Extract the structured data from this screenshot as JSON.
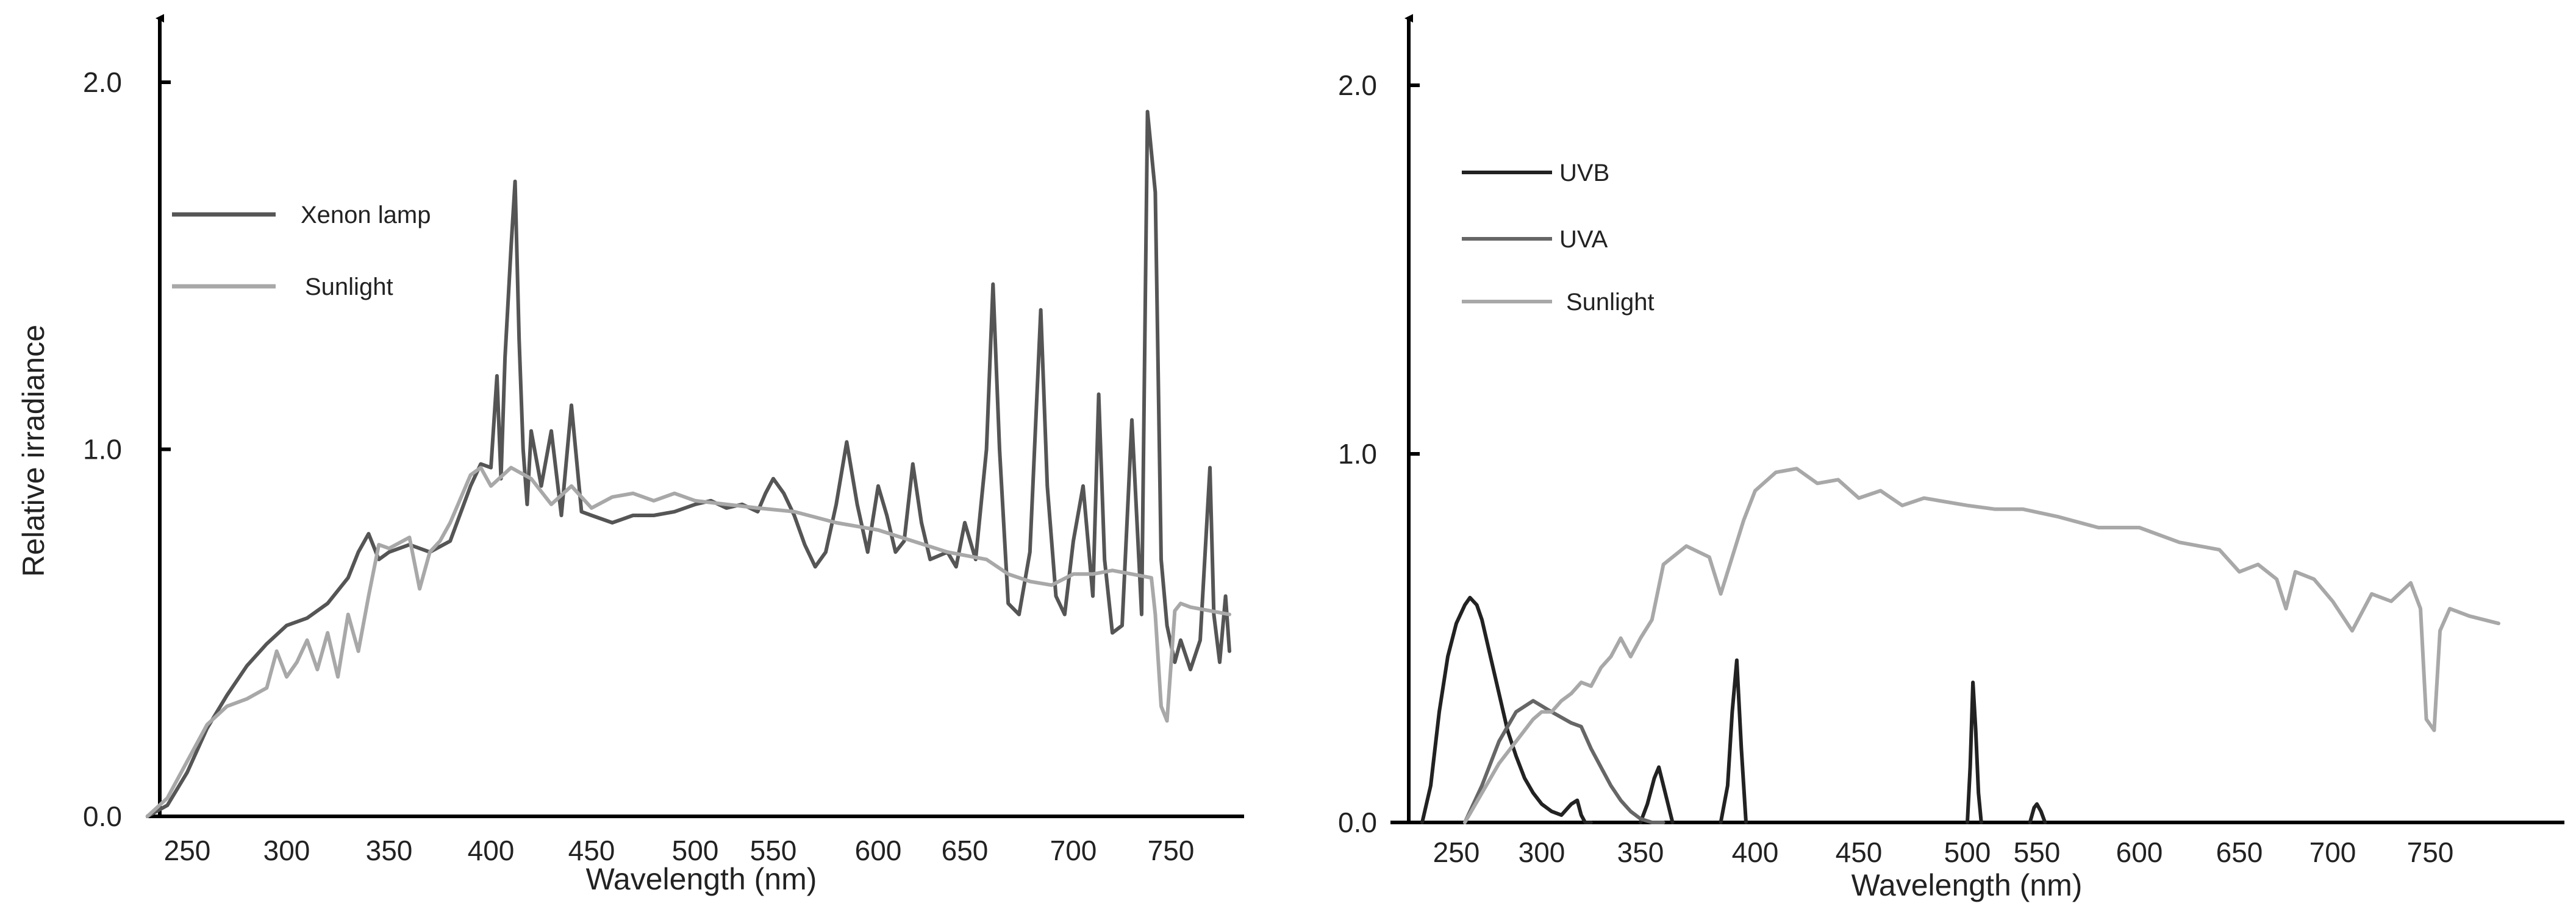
{
  "chart_data": [
    {
      "type": "line",
      "title": "",
      "xlabel": "Wavelength (nm)",
      "ylabel": "Relative irradiance",
      "x_ticks": [
        "250",
        "300",
        "350",
        "400",
        "450",
        "500",
        "550",
        "600",
        "650",
        "700",
        "750"
      ],
      "y_ticks": [
        "0.0",
        "1.0",
        "2.0"
      ],
      "xlim": [
        230,
        780
      ],
      "ylim": [
        0,
        2.0
      ],
      "legend_position": "top-left",
      "series": [
        {
          "name": "Xenon lamp",
          "color": "#555555",
          "x": [
            230,
            240,
            250,
            260,
            270,
            280,
            290,
            300,
            310,
            320,
            330,
            335,
            340,
            345,
            350,
            360,
            370,
            380,
            390,
            395,
            400,
            403,
            405,
            407,
            410,
            412,
            414,
            416,
            418,
            420,
            425,
            430,
            435,
            440,
            445,
            450,
            460,
            470,
            480,
            490,
            500,
            510,
            520,
            530,
            540,
            545,
            550,
            555,
            560,
            565,
            570,
            575,
            580,
            585,
            590,
            595,
            600,
            605,
            610,
            615,
            620,
            625,
            630,
            640,
            645,
            650,
            655,
            660,
            663,
            666,
            670,
            675,
            680,
            685,
            688,
            692,
            696,
            700,
            705,
            710,
            713,
            716,
            720,
            725,
            730,
            735,
            738,
            742,
            745,
            748,
            752,
            755,
            760,
            765,
            770,
            772,
            775,
            778,
            780
          ],
          "y": [
            0.0,
            0.03,
            0.12,
            0.24,
            0.33,
            0.41,
            0.47,
            0.52,
            0.54,
            0.58,
            0.65,
            0.72,
            0.77,
            0.7,
            0.72,
            0.74,
            0.72,
            0.75,
            0.9,
            0.96,
            0.95,
            1.2,
            0.92,
            1.25,
            1.55,
            1.73,
            1.3,
            1.0,
            0.85,
            1.05,
            0.9,
            1.05,
            0.82,
            1.12,
            0.83,
            0.82,
            0.8,
            0.82,
            0.82,
            0.83,
            0.85,
            0.86,
            0.84,
            0.85,
            0.83,
            0.88,
            0.92,
            0.88,
            0.82,
            0.74,
            0.68,
            0.72,
            0.85,
            1.02,
            0.85,
            0.72,
            0.9,
            0.82,
            0.72,
            0.75,
            0.96,
            0.8,
            0.7,
            0.72,
            0.68,
            0.8,
            0.7,
            1.0,
            1.45,
            1.0,
            0.58,
            0.55,
            0.72,
            1.38,
            0.9,
            0.6,
            0.55,
            0.75,
            0.9,
            0.6,
            1.15,
            0.7,
            0.5,
            0.52,
            1.08,
            0.55,
            1.92,
            1.7,
            0.7,
            0.52,
            0.42,
            0.48,
            0.4,
            0.48,
            0.95,
            0.55,
            0.42,
            0.6,
            0.45
          ]
        },
        {
          "name": "Sunlight",
          "color": "#a8a8a8",
          "x": [
            230,
            240,
            250,
            260,
            270,
            280,
            290,
            295,
            300,
            305,
            310,
            315,
            320,
            325,
            330,
            335,
            340,
            345,
            350,
            360,
            365,
            370,
            375,
            380,
            390,
            395,
            400,
            410,
            420,
            430,
            440,
            450,
            460,
            470,
            480,
            490,
            500,
            520,
            540,
            560,
            580,
            600,
            620,
            640,
            660,
            670,
            680,
            690,
            700,
            710,
            720,
            730,
            740,
            742,
            745,
            748,
            752,
            755,
            760,
            770,
            780
          ],
          "y": [
            0.0,
            0.05,
            0.15,
            0.25,
            0.3,
            0.32,
            0.35,
            0.45,
            0.38,
            0.42,
            0.48,
            0.4,
            0.5,
            0.38,
            0.55,
            0.45,
            0.6,
            0.74,
            0.73,
            0.76,
            0.62,
            0.72,
            0.75,
            0.8,
            0.93,
            0.95,
            0.9,
            0.95,
            0.92,
            0.85,
            0.9,
            0.84,
            0.87,
            0.88,
            0.86,
            0.88,
            0.86,
            0.85,
            0.84,
            0.83,
            0.8,
            0.78,
            0.75,
            0.72,
            0.7,
            0.66,
            0.64,
            0.63,
            0.66,
            0.66,
            0.67,
            0.66,
            0.65,
            0.55,
            0.3,
            0.26,
            0.56,
            0.58,
            0.57,
            0.56,
            0.55
          ]
        }
      ]
    },
    {
      "type": "line",
      "title": "",
      "xlabel": "Wavelength (nm)",
      "ylabel": "",
      "x_ticks": [
        "250",
        "300",
        "350",
        "400",
        "450",
        "500",
        "550",
        "600",
        "650",
        "700",
        "750"
      ],
      "y_ticks": [
        "0.0",
        "1.0",
        "2.0"
      ],
      "xlim": [
        228,
        785
      ],
      "ylim": [
        0,
        2.0
      ],
      "legend_position": "top-left",
      "series": [
        {
          "name": "UVB",
          "color": "#222222",
          "x": [
            230,
            235,
            240,
            245,
            250,
            255,
            258,
            260,
            262,
            265,
            270,
            275,
            280,
            285,
            290,
            295,
            300,
            305,
            310,
            315,
            318,
            320,
            322,
            325
          ],
          "y": [
            0.0,
            0.1,
            0.3,
            0.45,
            0.54,
            0.59,
            0.61,
            0.6,
            0.59,
            0.55,
            0.45,
            0.35,
            0.25,
            0.18,
            0.12,
            0.08,
            0.05,
            0.03,
            0.02,
            0.05,
            0.06,
            0.02,
            0.0,
            0.0
          ],
          "extra_x": [
            350,
            353,
            356,
            358,
            360,
            362,
            364,
            385,
            388,
            390,
            392,
            394,
            396,
            500,
            502,
            504,
            506,
            508,
            510,
            545,
            548,
            550,
            552,
            554
          ],
          "extra_y": [
            0.0,
            0.05,
            0.12,
            0.15,
            0.1,
            0.05,
            0.0,
            0.0,
            0.1,
            0.3,
            0.44,
            0.2,
            0.0,
            0.0,
            0.15,
            0.38,
            0.25,
            0.08,
            0.0,
            0.0,
            0.04,
            0.05,
            0.03,
            0.0
          ]
        },
        {
          "name": "UVA",
          "color": "#666666",
          "x": [
            255,
            265,
            275,
            285,
            295,
            305,
            315,
            320,
            325,
            330,
            335,
            340,
            345,
            350,
            355,
            360
          ],
          "y": [
            0.0,
            0.1,
            0.22,
            0.3,
            0.33,
            0.3,
            0.27,
            0.26,
            0.2,
            0.15,
            0.1,
            0.06,
            0.03,
            0.01,
            0.0,
            0.0
          ]
        },
        {
          "name": "Sunlight",
          "color": "#a8a8a8",
          "x": [
            255,
            265,
            275,
            285,
            295,
            300,
            305,
            310,
            315,
            320,
            325,
            330,
            335,
            340,
            345,
            350,
            355,
            360,
            370,
            380,
            385,
            390,
            395,
            400,
            410,
            420,
            430,
            440,
            450,
            460,
            470,
            480,
            500,
            520,
            540,
            560,
            580,
            600,
            620,
            640,
            650,
            660,
            670,
            675,
            680,
            690,
            700,
            710,
            720,
            730,
            740,
            745,
            748,
            752,
            755,
            760,
            770,
            785
          ],
          "y": [
            0.0,
            0.08,
            0.16,
            0.22,
            0.28,
            0.3,
            0.3,
            0.33,
            0.35,
            0.38,
            0.37,
            0.42,
            0.45,
            0.5,
            0.45,
            0.5,
            0.55,
            0.7,
            0.75,
            0.72,
            0.62,
            0.72,
            0.82,
            0.9,
            0.95,
            0.96,
            0.92,
            0.93,
            0.88,
            0.9,
            0.86,
            0.88,
            0.86,
            0.85,
            0.85,
            0.83,
            0.8,
            0.8,
            0.76,
            0.74,
            0.68,
            0.7,
            0.66,
            0.58,
            0.68,
            0.66,
            0.6,
            0.52,
            0.62,
            0.6,
            0.65,
            0.58,
            0.28,
            0.25,
            0.52,
            0.58,
            0.56,
            0.54
          ]
        }
      ]
    }
  ]
}
